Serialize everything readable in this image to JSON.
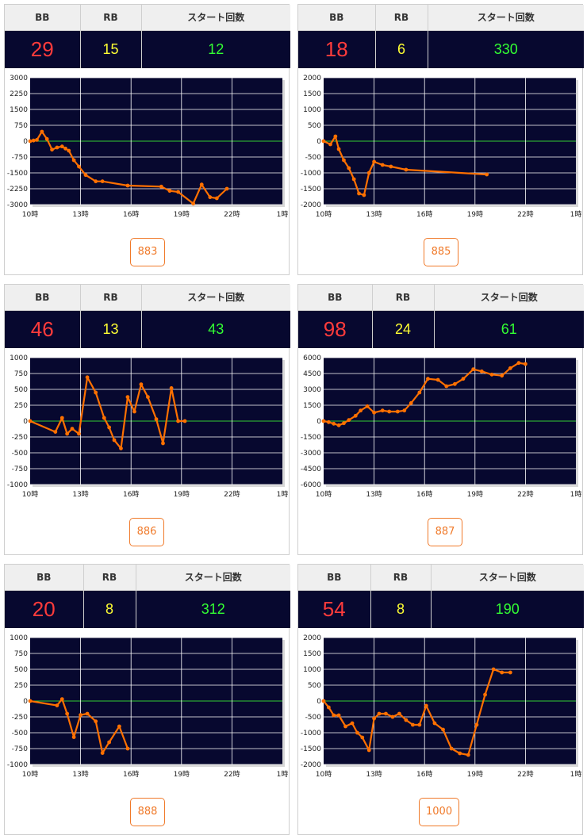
{
  "headers": {
    "bb": "BB",
    "rb": "RB",
    "start": "スタート回数"
  },
  "colors": {
    "bb": "#ff3b3b",
    "rb": "#ffff33",
    "start": "#33ff33",
    "plot_bg": "#07082f",
    "line": "#ff7000",
    "zero_line": "#33cc33"
  },
  "panels": [
    {
      "bb": "29",
      "rb": "15",
      "start": "12",
      "machine": "883"
    },
    {
      "bb": "18",
      "rb": "6",
      "start": "330",
      "machine": "885"
    },
    {
      "bb": "46",
      "rb": "13",
      "start": "43",
      "machine": "886"
    },
    {
      "bb": "98",
      "rb": "24",
      "start": "61",
      "machine": "887"
    },
    {
      "bb": "20",
      "rb": "8",
      "start": "312",
      "machine": "888"
    },
    {
      "bb": "54",
      "rb": "8",
      "start": "190",
      "machine": "1000"
    }
  ],
  "chart_data": [
    {
      "type": "line",
      "x_ticks": [
        "10時",
        "13時",
        "16時",
        "19時",
        "22時",
        "1時"
      ],
      "ylim": [
        -3000,
        3000
      ],
      "y_ticks": [
        3000,
        2250,
        1500,
        750,
        0,
        -750,
        -1500,
        -2250,
        -3000
      ],
      "series": [
        {
          "x": [
            10.0,
            10.2,
            10.4,
            10.7,
            11.0,
            11.3,
            11.6,
            11.9,
            12.1,
            12.3,
            12.6,
            12.9,
            13.3,
            13.9,
            14.3,
            15.8,
            17.8,
            18.3,
            18.8,
            19.7,
            20.2,
            20.7,
            21.1,
            21.7
          ],
          "y": [
            0,
            30,
            60,
            450,
            100,
            -400,
            -300,
            -250,
            -350,
            -450,
            -900,
            -1200,
            -1600,
            -1900,
            -1900,
            -2100,
            -2150,
            -2350,
            -2400,
            -2950,
            -2050,
            -2650,
            -2700,
            -2250
          ]
        }
      ]
    },
    {
      "type": "line",
      "x_ticks": [
        "10時",
        "13時",
        "16時",
        "19時",
        "22時",
        "1時"
      ],
      "ylim": [
        -2000,
        2000
      ],
      "y_ticks": [
        2000,
        1500,
        1000,
        500,
        0,
        -500,
        -1000,
        -1500,
        -2000
      ],
      "series": [
        {
          "x": [
            10.0,
            10.4,
            10.7,
            10.9,
            11.2,
            11.5,
            11.8,
            12.1,
            12.4,
            12.7,
            13.0,
            13.5,
            14.0,
            14.9,
            19.7
          ],
          "y": [
            0,
            -100,
            150,
            -250,
            -600,
            -850,
            -1200,
            -1650,
            -1700,
            -1000,
            -650,
            -750,
            -800,
            -900,
            -1050
          ]
        }
      ]
    },
    {
      "type": "line",
      "x_ticks": [
        "10時",
        "13時",
        "16時",
        "19時",
        "22時",
        "1時"
      ],
      "ylim": [
        -1000,
        1000
      ],
      "y_ticks": [
        1000,
        750,
        500,
        250,
        0,
        -250,
        -500,
        -750,
        -1000
      ],
      "series": [
        {
          "x": [
            10.0,
            11.5,
            11.9,
            12.2,
            12.5,
            12.9,
            13.4,
            13.9,
            14.4,
            14.7,
            15.0,
            15.4,
            15.8,
            16.2,
            16.6,
            17.0,
            17.5,
            17.9,
            18.4,
            18.8,
            19.2
          ],
          "y": [
            0,
            -170,
            50,
            -200,
            -120,
            -200,
            690,
            450,
            50,
            -100,
            -300,
            -430,
            380,
            150,
            580,
            380,
            30,
            -350,
            520,
            0,
            0
          ]
        }
      ]
    },
    {
      "type": "line",
      "x_ticks": [
        "10時",
        "13時",
        "16時",
        "19時",
        "22時",
        "1時"
      ],
      "ylim": [
        -6000,
        6000
      ],
      "y_ticks": [
        6000,
        4500,
        3000,
        1500,
        0,
        -1500,
        -3000,
        -4500,
        -6000
      ],
      "series": [
        {
          "x": [
            10.0,
            10.3,
            10.6,
            10.9,
            11.2,
            11.5,
            11.9,
            12.2,
            12.6,
            13.0,
            13.5,
            13.9,
            14.4,
            14.8,
            15.2,
            15.7,
            16.2,
            16.8,
            17.3,
            17.8,
            18.3,
            18.9,
            19.4,
            20.0,
            20.6,
            21.1,
            21.6,
            22.0
          ],
          "y": [
            0,
            -100,
            -250,
            -400,
            -200,
            100,
            500,
            1000,
            1400,
            800,
            1000,
            900,
            900,
            1000,
            1700,
            2700,
            4000,
            3900,
            3300,
            3500,
            4000,
            4900,
            4700,
            4400,
            4300,
            5000,
            5500,
            5400
          ]
        }
      ]
    },
    {
      "type": "line",
      "x_ticks": [
        "10時",
        "13時",
        "16時",
        "19時",
        "22時",
        "1時"
      ],
      "ylim": [
        -1000,
        1000
      ],
      "y_ticks": [
        1000,
        750,
        500,
        250,
        0,
        -250,
        -500,
        -750,
        -1000
      ],
      "series": [
        {
          "x": [
            10.0,
            11.6,
            11.9,
            12.2,
            12.6,
            13.0,
            13.4,
            13.9,
            14.3,
            14.7,
            15.3,
            15.8
          ],
          "y": [
            0,
            -70,
            30,
            -200,
            -570,
            -220,
            -200,
            -320,
            -820,
            -650,
            -400,
            -750
          ]
        }
      ]
    },
    {
      "type": "line",
      "x_ticks": [
        "10時",
        "13時",
        "16時",
        "19時",
        "22時",
        "1時"
      ],
      "ylim": [
        -2000,
        2000
      ],
      "y_ticks": [
        2000,
        1500,
        1000,
        500,
        0,
        -500,
        -1000,
        -1500,
        -2000
      ],
      "series": [
        {
          "x": [
            10.0,
            10.3,
            10.6,
            10.9,
            11.3,
            11.7,
            12.0,
            12.3,
            12.7,
            13.0,
            13.3,
            13.7,
            14.1,
            14.5,
            14.9,
            15.3,
            15.7,
            16.1,
            16.6,
            17.1,
            17.6,
            18.1,
            18.6,
            19.1,
            19.6,
            20.1,
            20.6,
            21.1
          ],
          "y": [
            0,
            -200,
            -450,
            -450,
            -800,
            -700,
            -1000,
            -1150,
            -1550,
            -550,
            -400,
            -400,
            -500,
            -400,
            -600,
            -750,
            -750,
            -150,
            -700,
            -900,
            -1500,
            -1650,
            -1700,
            -750,
            200,
            1000,
            900,
            900
          ]
        }
      ]
    }
  ]
}
